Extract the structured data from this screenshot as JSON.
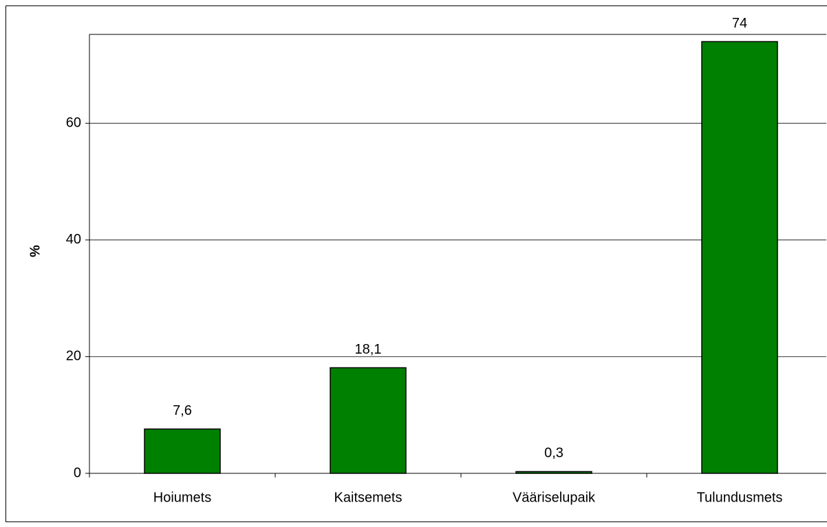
{
  "chart_data": {
    "type": "bar",
    "y_label": "%",
    "categories": [
      "Hoiumets",
      "Kaitsemets",
      "Vääriselupaik",
      "Tulundusmets"
    ],
    "values": [
      7.6,
      18.1,
      0.3,
      74
    ],
    "value_labels": [
      "7,6",
      "18,1",
      "0,3",
      "74"
    ],
    "color": "#008000",
    "ylim": [
      0,
      75
    ],
    "yticks": [
      0,
      20,
      40,
      60
    ],
    "grid": true
  }
}
